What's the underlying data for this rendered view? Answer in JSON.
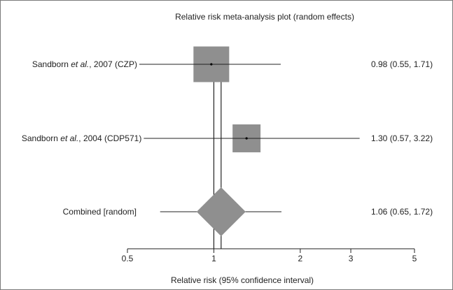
{
  "chart_data": {
    "type": "forest",
    "title": "Relative risk meta-analysis plot (random effects)",
    "xlabel": "Relative risk (95% confidence interval)",
    "x_scale": "log",
    "xlim": [
      0.5,
      5
    ],
    "xticks": [
      {
        "value": 0.5,
        "label": "0.5"
      },
      {
        "value": 1,
        "label": "1"
      },
      {
        "value": 2,
        "label": "2"
      },
      {
        "value": 3,
        "label": "3"
      },
      {
        "value": 5,
        "label": "5"
      }
    ],
    "reference_lines": [
      1.0,
      1.06
    ],
    "studies": [
      {
        "label_pre": "Sandborn ",
        "label_em": "et al.",
        "label_post": ", 2007 (CZP)",
        "rr": 0.98,
        "lower": 0.55,
        "upper": 1.71,
        "weight": 0.62,
        "ci_text": "0.98 (0.55, 1.71)"
      },
      {
        "label_pre": "Sandborn ",
        "label_em": "et al.",
        "label_post": ", 2004 (CDP571)",
        "rr": 1.3,
        "lower": 0.57,
        "upper": 3.22,
        "weight": 0.38,
        "ci_text": "1.30 (0.57, 3.22)"
      }
    ],
    "combined": {
      "label": "Combined [random]",
      "rr": 1.06,
      "lower": 0.65,
      "upper": 1.72,
      "ci_text": "1.06 (0.65, 1.72)"
    },
    "colors": {
      "box": "#8f8f8f",
      "line": "#222222"
    }
  }
}
